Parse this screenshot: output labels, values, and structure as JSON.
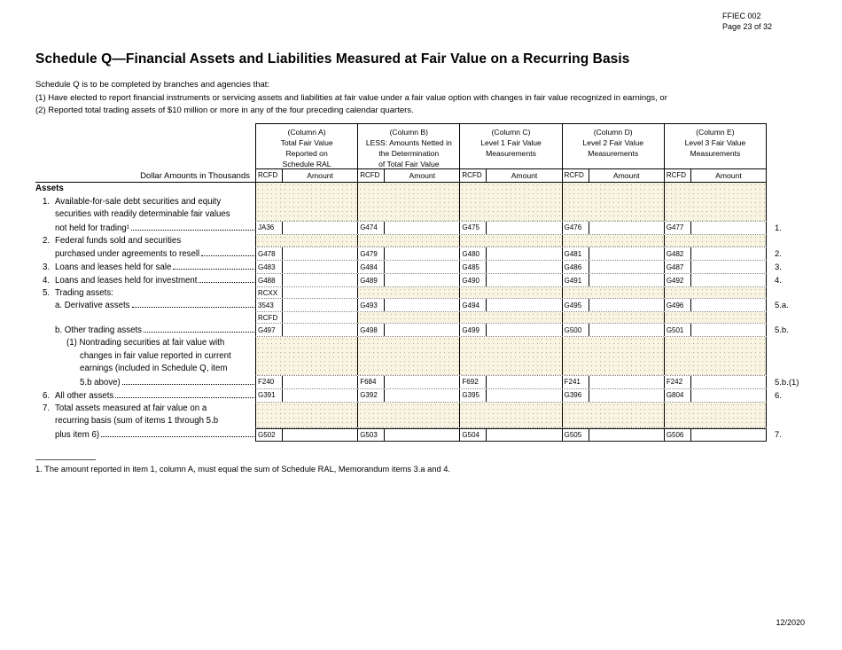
{
  "header": {
    "form_code": "FFIEC 002",
    "page_ref": "Page 23 of 32"
  },
  "title": "Schedule Q—Financial Assets and Liabilities Measured at Fair Value on a Recurring Basis",
  "intro_lines": [
    "Schedule Q is to be completed by branches and agencies that:",
    "(1) Have elected to report financial instruments or servicing assets and liabilities at fair value under a fair value option with changes in fair value recognized in earnings, or",
    "(2) Reported total trading assets of $10 million or more in any of the four preceding calendar quarters."
  ],
  "table": {
    "dollar_note": "Dollar Amounts in Thousands",
    "code_label": "RCFD",
    "amount_label": "Amount",
    "columns": [
      {
        "lines": [
          "(Column  A)",
          "Total Fair Value",
          "Reported on",
          "Schedule RAL"
        ]
      },
      {
        "lines": [
          "(Column B)",
          "LESS: Amounts Netted in",
          "the Determination",
          "of Total Fair Value"
        ]
      },
      {
        "lines": [
          "(Column C)",
          "Level 1 Fair Value",
          "Measurements"
        ]
      },
      {
        "lines": [
          "(Column D)",
          "Level 2 Fair Value",
          "Measurements"
        ]
      },
      {
        "lines": [
          "(Column E)",
          "Level 3 Fair Value",
          "Measurements"
        ]
      }
    ],
    "bands": [
      {
        "type": "shaded",
        "desc": [
          {
            "t": "Assets",
            "i": 0,
            "b": 1
          },
          {
            "n": "1.",
            "t": "Available-for-sale debt securities and equity",
            "i": 1
          },
          {
            "t": "securities with readily determinable fair values",
            "i": 2
          }
        ]
      },
      {
        "type": "codes",
        "desc": {
          "t": "not held for trading¹",
          "i": 2,
          "dots": true
        },
        "codes": [
          "JA36",
          "G474",
          "G475",
          "G476",
          "G477"
        ],
        "label": "1."
      },
      {
        "type": "shaded",
        "desc": [
          {
            "n": "2.",
            "t": "Federal funds sold and securities",
            "i": 1
          }
        ]
      },
      {
        "type": "codes",
        "desc": {
          "t": "purchased under agreements to resell",
          "i": 2,
          "dots": true
        },
        "codes": [
          "G478",
          "G479",
          "G480",
          "G481",
          "G482"
        ],
        "label": "2."
      },
      {
        "type": "codes",
        "desc": {
          "n": "3.",
          "t": "Loans and leases held for sale",
          "i": 1,
          "dots": true
        },
        "codes": [
          "G483",
          "G484",
          "G485",
          "G486",
          "G487"
        ],
        "label": "3."
      },
      {
        "type": "codes",
        "desc": {
          "n": "4.",
          "t": "Loans and leases held for investment",
          "i": 1,
          "dots": true
        },
        "codes": [
          "G488",
          "G489",
          "G490",
          "G491",
          "G492"
        ],
        "label": "4."
      },
      {
        "type": "labelrow",
        "code": "RCXX",
        "desc": {
          "n": "5.",
          "t": "Trading assets:",
          "i": 1
        }
      },
      {
        "type": "codes",
        "desc": {
          "t": "a. Derivative assets",
          "i": 2,
          "dots": true
        },
        "codes": [
          "3543",
          "G493",
          "G494",
          "G495",
          "G496"
        ],
        "label": "5.a."
      },
      {
        "type": "labelrow",
        "code": "RCFD",
        "desc": null
      },
      {
        "type": "codes",
        "desc": {
          "t": "b. Other trading assets",
          "i": 2,
          "dots": true
        },
        "codes": [
          "G497",
          "G498",
          "G499",
          "G500",
          "G501"
        ],
        "label": "5.b."
      },
      {
        "type": "shaded",
        "desc": [
          {
            "t": "(1) Nontrading securities at fair value with",
            "i": 3
          },
          {
            "t": "changes in fair value reported in current",
            "i": 4
          },
          {
            "t": "earnings (included in Schedule Q, item",
            "i": 4
          }
        ]
      },
      {
        "type": "codes",
        "desc": {
          "t": "5.b above)",
          "i": 4,
          "dots": true
        },
        "codes": [
          "F240",
          "F684",
          "F692",
          "F241",
          "F242"
        ],
        "label": "5.b.(1)"
      },
      {
        "type": "codes",
        "desc": {
          "n": "6.",
          "t": "All other assets",
          "i": 1,
          "dots": true
        },
        "codes": [
          "G391",
          "G392",
          "G395",
          "G396",
          "G804"
        ],
        "label": "6."
      },
      {
        "type": "shaded",
        "desc": [
          {
            "n": "7.",
            "t": "Total assets measured at fair value on a",
            "i": 1
          },
          {
            "t": "recurring basis (sum of items 1 through 5.b",
            "i": 2
          }
        ]
      },
      {
        "type": "codes",
        "thick_top": true,
        "desc": {
          "t": "plus item 6)",
          "i": 2,
          "dots": true
        },
        "codes": [
          "G502",
          "G503",
          "G504",
          "G505",
          "G506"
        ],
        "label": "7."
      }
    ]
  },
  "footnote": "1. The amount reported in item 1, column A, must equal the sum of Schedule RAL, Memorandum items 3.a and 4.",
  "footer": {
    "date": "12/2020"
  }
}
